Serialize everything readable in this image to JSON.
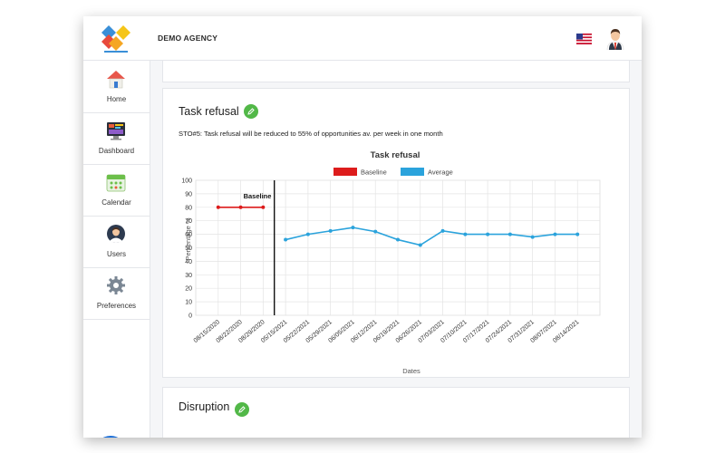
{
  "header": {
    "agency_name": "DEMO AGENCY",
    "logo_icon": "diamond-logo-icon",
    "flag_icon": "us-flag-icon",
    "avatar_icon": "user-avatar-icon"
  },
  "sidebar": {
    "items": [
      {
        "label": "Home",
        "icon": "home-icon"
      },
      {
        "label": "Dashboard",
        "icon": "dashboard-icon"
      },
      {
        "label": "Calendar",
        "icon": "calendar-icon"
      },
      {
        "label": "Users",
        "icon": "users-icon"
      },
      {
        "label": "Preferences",
        "icon": "gear-icon"
      }
    ],
    "chat_icon": "chat-bubble-icon"
  },
  "main": {
    "task_card": {
      "title": "Task refusal",
      "edit_icon": "pencil-icon",
      "sto_text": "STO#5: Task refusal will be reduced to 55% of opportunities av. per week in one month"
    },
    "disruption_card": {
      "title": "Disruption",
      "edit_icon": "pencil-icon"
    }
  },
  "chart_data": {
    "type": "line",
    "title": "Task refusal",
    "xlabel": "Dates",
    "ylabel": "Percentage %",
    "ylim": [
      0,
      100
    ],
    "yticks": [
      0,
      10,
      20,
      30,
      40,
      50,
      60,
      70,
      80,
      90,
      100
    ],
    "grid": true,
    "legend_position": "top-center",
    "annotation": "Baseline",
    "x_labels": [
      "08/15/2020",
      "08/22/2020",
      "08/29/2020",
      "05/15/2021",
      "05/22/2021",
      "05/29/2021",
      "06/05/2021",
      "06/12/2021",
      "06/19/2021",
      "06/26/2021",
      "07/03/2021",
      "07/10/2021",
      "07/17/2021",
      "07/24/2021",
      "07/31/2021",
      "08/07/2021",
      "08/14/2021"
    ],
    "series": [
      {
        "name": "Baseline",
        "color": "#dd1c1c",
        "x": [
          "08/15/2020",
          "08/22/2020",
          "08/29/2020"
        ],
        "values": [
          80,
          80,
          80
        ]
      },
      {
        "name": "Average",
        "color": "#2ba3dc",
        "x": [
          "05/15/2021",
          "05/22/2021",
          "05/29/2021",
          "06/05/2021",
          "06/12/2021",
          "06/19/2021",
          "06/26/2021",
          "07/03/2021",
          "07/10/2021",
          "07/17/2021",
          "07/24/2021",
          "07/31/2021",
          "08/07/2021",
          "08/14/2021"
        ],
        "values": [
          56,
          60,
          62.5,
          65,
          62,
          56,
          52,
          62.5,
          60,
          60,
          60,
          58,
          60,
          60
        ]
      }
    ]
  }
}
